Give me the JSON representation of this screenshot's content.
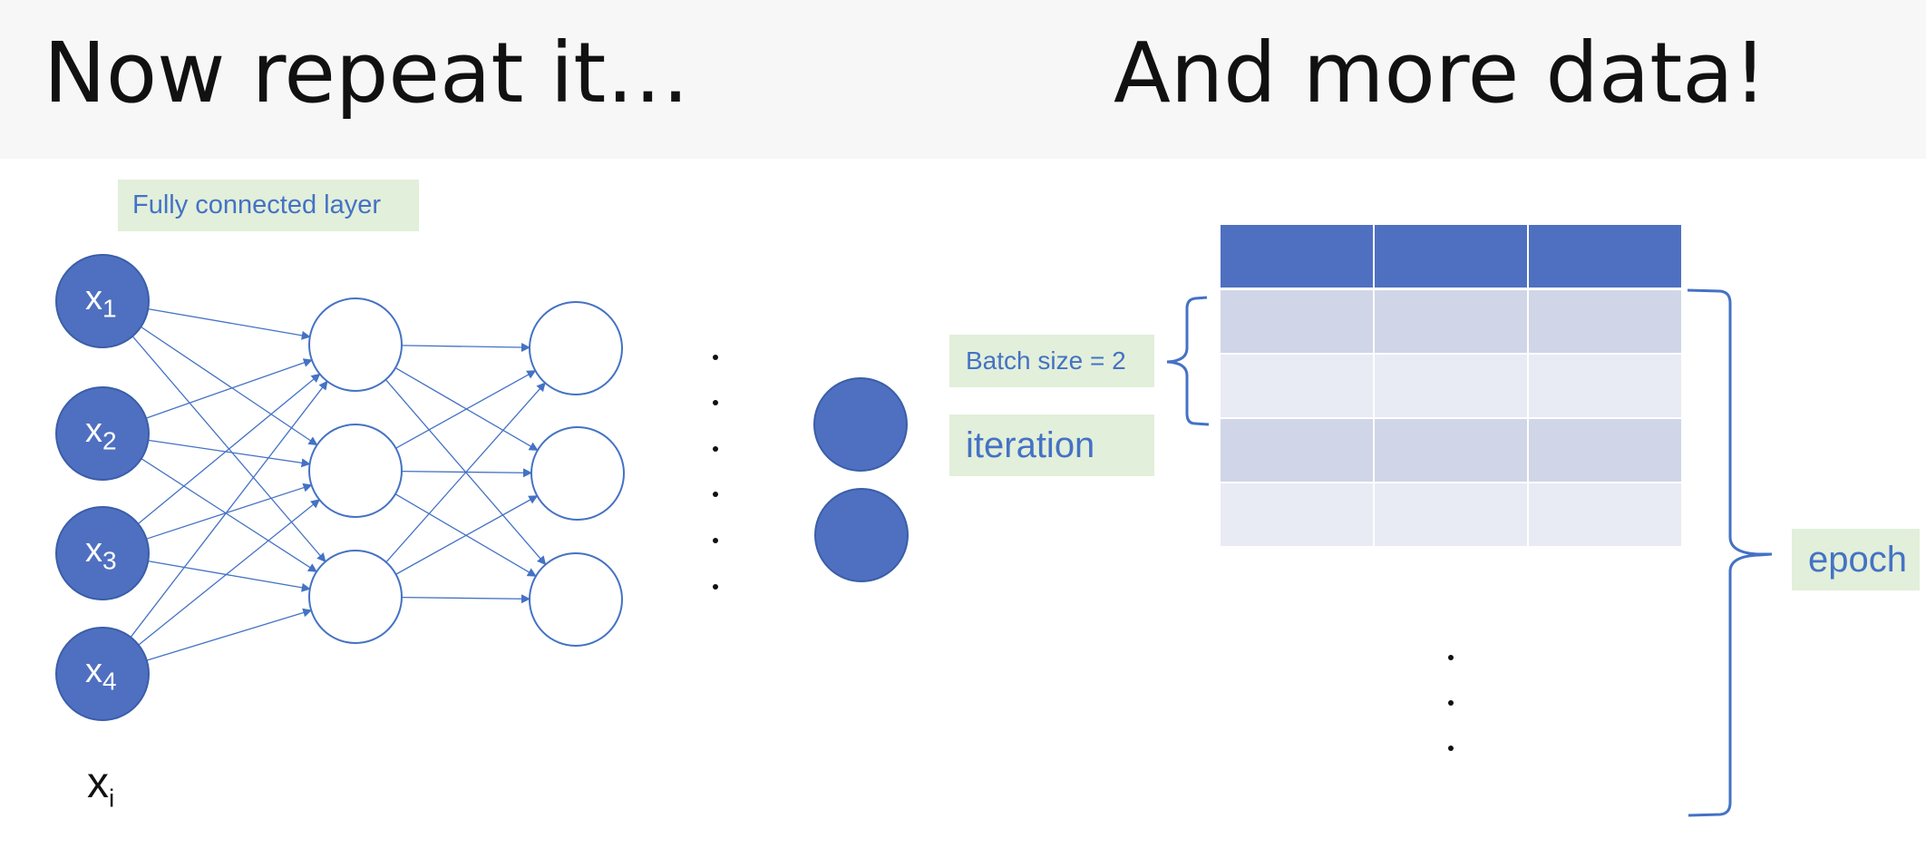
{
  "header": {
    "left_title": "Now repeat it…",
    "right_title": "And more data!"
  },
  "network": {
    "layer_label": "Fully connected layer",
    "inputs": [
      {
        "base": "x",
        "sub": "1"
      },
      {
        "base": "x",
        "sub": "2"
      },
      {
        "base": "x",
        "sub": "3"
      },
      {
        "base": "x",
        "sub": "4"
      }
    ],
    "input_caption": {
      "base": "x",
      "sub": "i"
    }
  },
  "data_table": {
    "batch_label": "Batch size = 2",
    "iteration_label": "iteration",
    "epoch_label": "epoch"
  },
  "colors": {
    "node_fill": "#4f70c0",
    "edge": "#4472c4",
    "label_bg": "#e2efda",
    "label_text": "#4472c4",
    "table_header": "#4f70c0",
    "table_row_dark": "#d0d6e8",
    "table_row_light": "#e8ebf4"
  }
}
